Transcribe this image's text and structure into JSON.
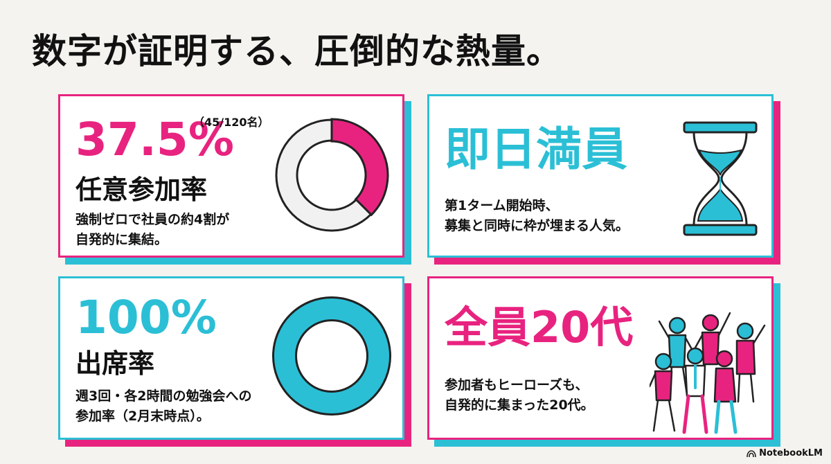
{
  "title": "数字が証明する、圧倒的な熱量。",
  "colors": {
    "pink": "#e8237f",
    "cyan": "#2bbfd6",
    "background": "#f4f3ef"
  },
  "cards": {
    "participation": {
      "value": "37.5%",
      "count": "（45/120名）",
      "label": "任意参加率",
      "desc_line1": "強制ゼロで社員の約4割が",
      "desc_line2": "自発的に集結。",
      "donut_fraction": 0.375
    },
    "full": {
      "value": "即日満員",
      "desc_line1": "第1ターム開始時、",
      "desc_line2": "募集と同時に枠が埋まる人気。",
      "icon": "hourglass-icon"
    },
    "attendance": {
      "value": "100%",
      "label": "出席率",
      "desc_line1": "週3回・各2時間の勉強会への",
      "desc_line2": "参加率（2月末時点）。",
      "ring_fraction": 1.0
    },
    "age": {
      "value": "全員20代",
      "desc_line1": "参加者もヒーローズも、",
      "desc_line2": "自発的に集まった20代。",
      "icon": "cheering-people-icon"
    }
  },
  "brand": {
    "name": "NotebookLM",
    "icon": "notebooklm-logo-icon"
  }
}
